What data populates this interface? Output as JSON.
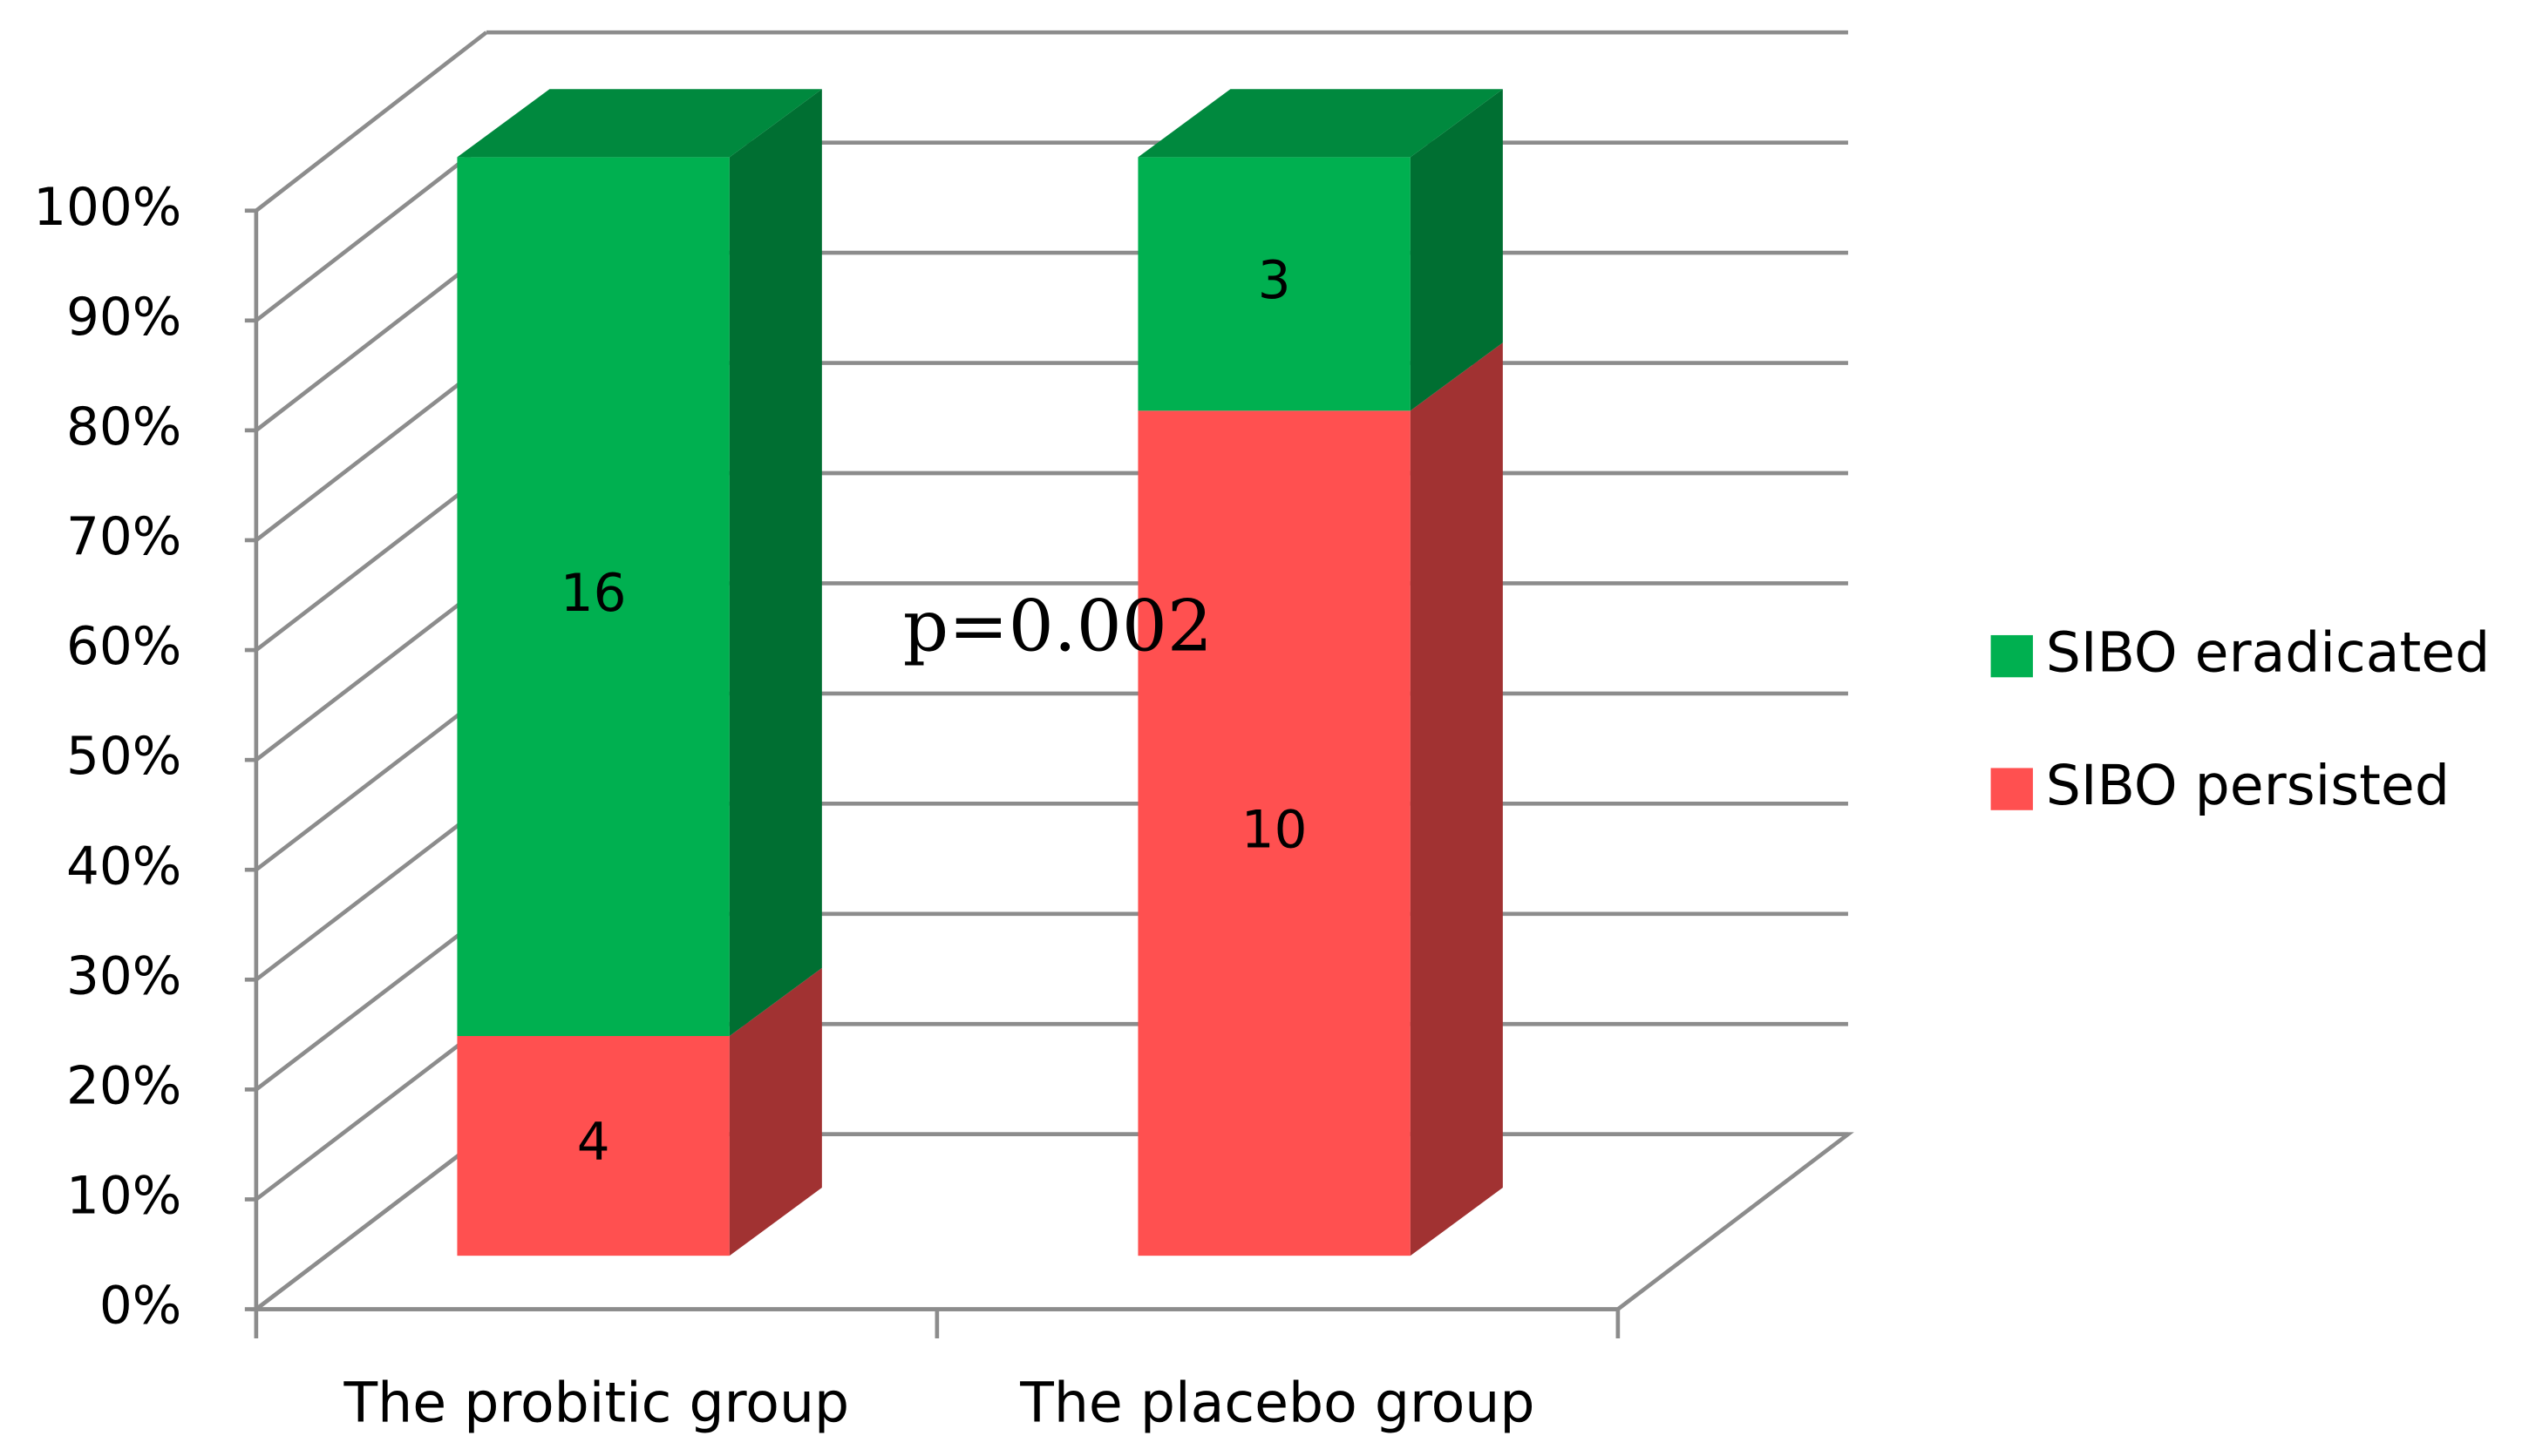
{
  "chart_data": {
    "type": "bar",
    "stacked": "percent",
    "categories": [
      "The probitic group",
      "The placebo group"
    ],
    "series": [
      {
        "name": "SIBO persisted",
        "color": "#ff5050",
        "values": [
          4,
          10
        ]
      },
      {
        "name": "SIBO eradicated",
        "color": "#00b050",
        "values": [
          16,
          3
        ]
      }
    ],
    "ylim": [
      0,
      100
    ],
    "yticks": [
      {
        "value": 0,
        "label": "0%"
      },
      {
        "value": 10,
        "label": "10%"
      },
      {
        "value": 20,
        "label": "20%"
      },
      {
        "value": 30,
        "label": "30%"
      },
      {
        "value": 40,
        "label": "40%"
      },
      {
        "value": 50,
        "label": "50%"
      },
      {
        "value": 60,
        "label": "60%"
      },
      {
        "value": 70,
        "label": "70%"
      },
      {
        "value": 80,
        "label": "80%"
      },
      {
        "value": 90,
        "label": "90%"
      },
      {
        "value": 100,
        "label": "100%"
      }
    ],
    "grid": true,
    "legend": "right",
    "annotation": "p=0.002"
  }
}
